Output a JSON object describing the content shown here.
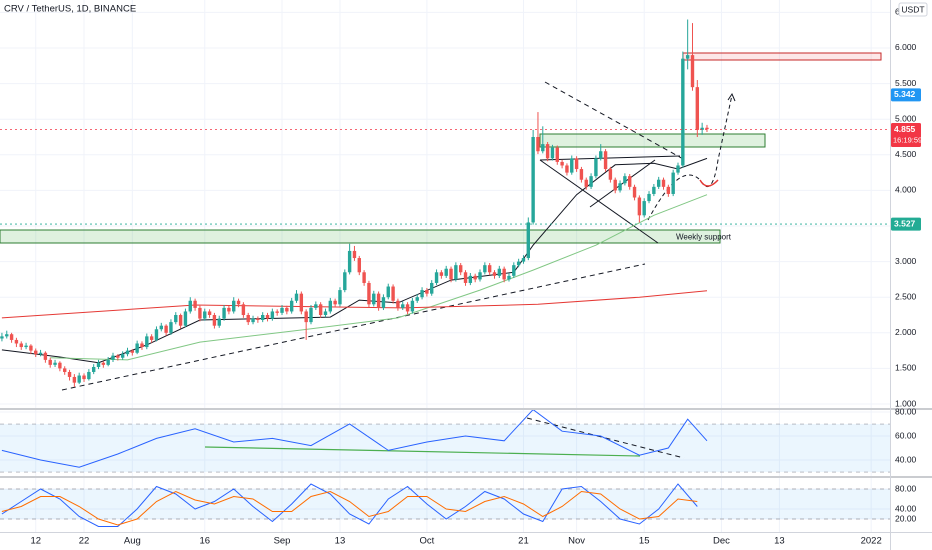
{
  "chart_data": [
    {
      "type": "candlestick",
      "title": "CRV / TetherUS, 1D, BINANCE",
      "currency": "USDT",
      "up_color": "#26a69a",
      "down_color": "#ef5350",
      "candles": [
        [
          1.92,
          2.0,
          1.88,
          1.95
        ],
        [
          1.95,
          2.03,
          1.92,
          1.98
        ],
        [
          1.98,
          2.0,
          1.86,
          1.9
        ],
        [
          1.9,
          1.93,
          1.8,
          1.85
        ],
        [
          1.85,
          1.88,
          1.76,
          1.8
        ],
        [
          1.8,
          1.86,
          1.77,
          1.82
        ],
        [
          1.82,
          1.84,
          1.7,
          1.75
        ],
        [
          1.75,
          1.78,
          1.66,
          1.7
        ],
        [
          1.7,
          1.76,
          1.67,
          1.72
        ],
        [
          1.72,
          1.74,
          1.58,
          1.62
        ],
        [
          1.62,
          1.65,
          1.51,
          1.55
        ],
        [
          1.55,
          1.62,
          1.52,
          1.58
        ],
        [
          1.58,
          1.6,
          1.46,
          1.5
        ],
        [
          1.5,
          1.53,
          1.41,
          1.45
        ],
        [
          1.45,
          1.48,
          1.33,
          1.38
        ],
        [
          1.38,
          1.42,
          1.24,
          1.3
        ],
        [
          1.3,
          1.44,
          1.28,
          1.4
        ],
        [
          1.4,
          1.43,
          1.31,
          1.35
        ],
        [
          1.35,
          1.49,
          1.33,
          1.45
        ],
        [
          1.45,
          1.56,
          1.42,
          1.52
        ],
        [
          1.52,
          1.62,
          1.49,
          1.58
        ],
        [
          1.58,
          1.6,
          1.51,
          1.55
        ],
        [
          1.55,
          1.66,
          1.53,
          1.62
        ],
        [
          1.62,
          1.72,
          1.59,
          1.68
        ],
        [
          1.68,
          1.7,
          1.61,
          1.65
        ],
        [
          1.65,
          1.74,
          1.62,
          1.7
        ],
        [
          1.7,
          1.79,
          1.67,
          1.75
        ],
        [
          1.75,
          1.77,
          1.68,
          1.72
        ],
        [
          1.72,
          1.89,
          1.7,
          1.85
        ],
        [
          1.85,
          1.88,
          1.76,
          1.8
        ],
        [
          1.8,
          1.99,
          1.77,
          1.95
        ],
        [
          1.95,
          1.98,
          1.86,
          1.9
        ],
        [
          1.9,
          2.09,
          1.88,
          2.05
        ],
        [
          2.05,
          2.14,
          2.02,
          2.1
        ],
        [
          2.1,
          2.12,
          1.96,
          2.0
        ],
        [
          2.0,
          2.19,
          1.97,
          2.15
        ],
        [
          2.15,
          2.29,
          2.12,
          2.25
        ],
        [
          2.25,
          2.27,
          2.06,
          2.1
        ],
        [
          2.1,
          2.34,
          2.08,
          2.3
        ],
        [
          2.3,
          2.5,
          2.27,
          2.45
        ],
        [
          2.45,
          2.48,
          2.31,
          2.35
        ],
        [
          2.35,
          2.38,
          2.16,
          2.2
        ],
        [
          2.2,
          2.34,
          2.17,
          2.3
        ],
        [
          2.3,
          2.33,
          2.21,
          2.25
        ],
        [
          2.25,
          2.28,
          2.06,
          2.1
        ],
        [
          2.1,
          2.24,
          2.07,
          2.2
        ],
        [
          2.2,
          2.39,
          2.17,
          2.35
        ],
        [
          2.35,
          2.38,
          2.26,
          2.3
        ],
        [
          2.3,
          2.5,
          2.27,
          2.45
        ],
        [
          2.45,
          2.48,
          2.36,
          2.4
        ],
        [
          2.4,
          2.43,
          2.21,
          2.25
        ],
        [
          2.25,
          2.28,
          2.11,
          2.15
        ],
        [
          2.15,
          2.24,
          2.12,
          2.2
        ],
        [
          2.2,
          2.23,
          2.14,
          2.18
        ],
        [
          2.18,
          2.29,
          2.15,
          2.25
        ],
        [
          2.25,
          2.28,
          2.16,
          2.2
        ],
        [
          2.2,
          2.34,
          2.17,
          2.3
        ],
        [
          2.3,
          2.33,
          2.24,
          2.28
        ],
        [
          2.28,
          2.39,
          2.25,
          2.35
        ],
        [
          2.35,
          2.38,
          2.26,
          2.3
        ],
        [
          2.3,
          2.49,
          2.27,
          2.45
        ],
        [
          2.45,
          2.6,
          2.42,
          2.55
        ],
        [
          2.55,
          2.58,
          2.26,
          2.3
        ],
        [
          2.3,
          2.33,
          1.9,
          2.15
        ],
        [
          2.15,
          2.39,
          2.12,
          2.35
        ],
        [
          2.35,
          2.44,
          2.32,
          2.4
        ],
        [
          2.4,
          2.43,
          2.21,
          2.25
        ],
        [
          2.25,
          2.34,
          2.22,
          2.3
        ],
        [
          2.3,
          2.49,
          2.27,
          2.45
        ],
        [
          2.45,
          2.48,
          2.36,
          2.4
        ],
        [
          2.4,
          2.64,
          2.37,
          2.6
        ],
        [
          2.6,
          2.89,
          2.57,
          2.85
        ],
        [
          2.85,
          3.25,
          2.82,
          3.15
        ],
        [
          3.15,
          3.22,
          3.01,
          3.05
        ],
        [
          3.05,
          3.08,
          2.81,
          2.85
        ],
        [
          2.85,
          2.88,
          2.66,
          2.7
        ],
        [
          2.7,
          2.73,
          2.36,
          2.4
        ],
        [
          2.4,
          2.59,
          2.37,
          2.55
        ],
        [
          2.55,
          2.58,
          2.31,
          2.35
        ],
        [
          2.35,
          2.54,
          2.32,
          2.5
        ],
        [
          2.5,
          2.69,
          2.47,
          2.65
        ],
        [
          2.65,
          2.68,
          2.41,
          2.45
        ],
        [
          2.45,
          2.48,
          2.31,
          2.35
        ],
        [
          2.35,
          2.44,
          2.32,
          2.4
        ],
        [
          2.4,
          2.43,
          2.26,
          2.3
        ],
        [
          2.3,
          2.49,
          2.27,
          2.45
        ],
        [
          2.45,
          2.54,
          2.42,
          2.5
        ],
        [
          2.5,
          2.64,
          2.47,
          2.6
        ],
        [
          2.6,
          2.63,
          2.51,
          2.55
        ],
        [
          2.55,
          2.74,
          2.52,
          2.7
        ],
        [
          2.7,
          2.89,
          2.67,
          2.85
        ],
        [
          2.85,
          2.88,
          2.76,
          2.8
        ],
        [
          2.8,
          2.94,
          2.77,
          2.9
        ],
        [
          2.9,
          2.93,
          2.71,
          2.75
        ],
        [
          2.75,
          2.99,
          2.72,
          2.95
        ],
        [
          2.95,
          2.98,
          2.81,
          2.85
        ],
        [
          2.85,
          2.88,
          2.66,
          2.7
        ],
        [
          2.7,
          2.84,
          2.67,
          2.8
        ],
        [
          2.8,
          2.83,
          2.71,
          2.75
        ],
        [
          2.75,
          2.89,
          2.72,
          2.85
        ],
        [
          2.85,
          2.99,
          2.82,
          2.95
        ],
        [
          2.95,
          2.98,
          2.81,
          2.85
        ],
        [
          2.85,
          2.88,
          2.76,
          2.8
        ],
        [
          2.8,
          2.94,
          2.77,
          2.9
        ],
        [
          2.9,
          2.93,
          2.71,
          2.75
        ],
        [
          2.75,
          2.84,
          2.72,
          2.8
        ],
        [
          2.8,
          2.99,
          2.77,
          2.95
        ],
        [
          2.95,
          3.04,
          2.92,
          3.0
        ],
        [
          3.0,
          3.09,
          2.97,
          3.05
        ],
        [
          3.05,
          3.62,
          3.02,
          3.55
        ],
        [
          3.55,
          4.85,
          3.52,
          4.75
        ],
        [
          4.75,
          5.1,
          4.51,
          4.55
        ],
        [
          4.55,
          4.9,
          4.52,
          4.65
        ],
        [
          4.65,
          4.68,
          4.41,
          4.45
        ],
        [
          4.45,
          4.64,
          4.42,
          4.6
        ],
        [
          4.6,
          4.63,
          4.36,
          4.4
        ],
        [
          4.4,
          4.43,
          4.31,
          4.35
        ],
        [
          4.35,
          4.38,
          4.21,
          4.25
        ],
        [
          4.25,
          4.49,
          4.22,
          4.45
        ],
        [
          4.45,
          4.48,
          4.26,
          4.3
        ],
        [
          4.3,
          4.33,
          4.11,
          4.15
        ],
        [
          4.15,
          4.18,
          4.01,
          4.05
        ],
        [
          4.05,
          4.24,
          4.02,
          4.2
        ],
        [
          4.2,
          4.49,
          4.17,
          4.45
        ],
        [
          4.45,
          4.65,
          4.42,
          4.55
        ],
        [
          4.55,
          4.58,
          4.26,
          4.3
        ],
        [
          4.3,
          4.33,
          4.11,
          4.15
        ],
        [
          4.15,
          4.18,
          3.96,
          4.0
        ],
        [
          4.0,
          4.14,
          3.97,
          4.1
        ],
        [
          4.1,
          4.24,
          4.07,
          4.2
        ],
        [
          4.2,
          4.23,
          4.01,
          4.05
        ],
        [
          4.05,
          4.08,
          3.86,
          3.9
        ],
        [
          3.9,
          3.93,
          3.55,
          3.65
        ],
        [
          3.65,
          3.89,
          3.62,
          3.85
        ],
        [
          3.85,
          3.99,
          3.82,
          3.95
        ],
        [
          3.95,
          4.09,
          3.92,
          4.05
        ],
        [
          4.05,
          4.19,
          4.02,
          4.15
        ],
        [
          4.15,
          4.18,
          4.01,
          4.05
        ],
        [
          4.05,
          4.08,
          3.91,
          3.95
        ],
        [
          3.95,
          4.29,
          3.92,
          4.25
        ],
        [
          4.25,
          4.39,
          4.22,
          4.35
        ],
        [
          4.35,
          5.95,
          4.32,
          5.85
        ],
        [
          5.85,
          6.4,
          5.7,
          5.9
        ],
        [
          5.9,
          6.35,
          5.4,
          5.45
        ],
        [
          5.45,
          5.55,
          4.75,
          4.85
        ],
        [
          4.85,
          4.95,
          4.78,
          4.88
        ],
        [
          4.88,
          4.92,
          4.82,
          4.86
        ]
      ],
      "lines": [
        {
          "color": "#131722",
          "x": [
            0,
            12,
            20,
            30,
            41,
            54,
            68,
            74,
            82,
            93,
            106,
            110,
            119,
            127,
            135,
            140,
            146
          ],
          "values": [
            1.76,
            1.66,
            1.58,
            1.83,
            2.18,
            2.2,
            2.22,
            2.46,
            2.42,
            2.74,
            2.85,
            3.23,
            3.94,
            4.36,
            4.38,
            4.3,
            4.45
          ]
        },
        {
          "color": "#81c784",
          "x": [
            10,
            26,
            41,
            62,
            82,
            99,
            110,
            123,
            135,
            146
          ],
          "values": [
            1.65,
            1.62,
            1.87,
            2.04,
            2.21,
            2.6,
            2.88,
            3.23,
            3.65,
            3.94
          ]
        },
        {
          "color": "#e53935",
          "x": [
            0,
            40,
            83,
            111,
            132,
            146
          ],
          "values": [
            2.21,
            2.39,
            2.35,
            2.4,
            2.5,
            2.59
          ]
        }
      ],
      "price_labels": [
        {
          "value": 5.342,
          "color": "#2196f3",
          "line": false
        },
        {
          "value": 4.855,
          "color": "#f23645",
          "countdown": "16:19:59",
          "line": true
        },
        {
          "value": 3.527,
          "color": "#22ab94",
          "line": true
        }
      ],
      "annotations": [
        "Weekly support"
      ],
      "xlim": [
        -0.4,
        183.9
      ],
      "xticks": [
        {
          "value": 7,
          "label": "12"
        },
        {
          "value": 17,
          "label": "22"
        },
        {
          "value": 27,
          "label": "Aug"
        },
        {
          "value": 42,
          "label": "16"
        },
        {
          "value": 58,
          "label": "Sep"
        },
        {
          "value": 70,
          "label": "13"
        },
        {
          "value": 88,
          "label": "Oct"
        },
        {
          "value": 108,
          "label": "21"
        },
        {
          "value": 119,
          "label": "Nov"
        },
        {
          "value": 133,
          "label": "15"
        },
        {
          "value": 149,
          "label": "Dec"
        },
        {
          "value": 161,
          "label": "13"
        },
        {
          "value": 180,
          "label": "2022"
        }
      ],
      "ylim": [
        0.944,
        6.674
      ],
      "yticks": [
        {
          "value": 1,
          "label": "1.000"
        },
        {
          "value": 1.5,
          "label": "1.500"
        },
        {
          "value": 2,
          "label": "2.000"
        },
        {
          "value": 2.5,
          "label": "2.500"
        },
        {
          "value": 3,
          "label": "3.000"
        },
        {
          "value": 3.5,
          "label": "3.500"
        },
        {
          "value": 4,
          "label": "4.000"
        },
        {
          "value": 4.5,
          "label": "4.500"
        },
        {
          "value": 5,
          "label": "5.000"
        },
        {
          "value": 5.5,
          "label": "5.500"
        },
        {
          "value": 6,
          "label": "6.000"
        },
        {
          "value": 6.5,
          "label": "6.500"
        }
      ],
      "grid": true
    },
    {
      "type": "line",
      "x": [
        0,
        8,
        16,
        24,
        32,
        40,
        48,
        56,
        64,
        72,
        80,
        88,
        96,
        104,
        110,
        116,
        124,
        132,
        138,
        142,
        146
      ],
      "series": [
        {
          "color": "#2962ff",
          "values": [
            48,
            40,
            34,
            45,
            58,
            66,
            55,
            58,
            52,
            70,
            48,
            55,
            60,
            56,
            82,
            64,
            60,
            44,
            50,
            74,
            56
          ]
        }
      ],
      "band": [
        30,
        70
      ],
      "ylim": [
        26.7,
        81.7
      ],
      "yticks": [
        {
          "value": 40,
          "label": "40.00"
        },
        {
          "value": 60,
          "label": "60.00"
        },
        {
          "value": 80,
          "label": "80.00"
        }
      ],
      "grid": true
    },
    {
      "type": "line",
      "x": [
        0,
        4,
        8,
        12,
        16,
        20,
        24,
        28,
        32,
        36,
        40,
        44,
        48,
        52,
        56,
        60,
        64,
        68,
        72,
        76,
        80,
        84,
        88,
        92,
        96,
        100,
        104,
        108,
        112,
        116,
        120,
        124,
        128,
        132,
        136,
        140,
        144
      ],
      "series": [
        {
          "color": "#2962ff",
          "values": [
            30,
            55,
            80,
            60,
            25,
            5,
            5,
            40,
            85,
            70,
            40,
            55,
            80,
            45,
            15,
            50,
            90,
            70,
            30,
            10,
            60,
            85,
            50,
            20,
            45,
            75,
            60,
            30,
            15,
            80,
            85,
            55,
            20,
            10,
            40,
            90,
            45
          ]
        },
        {
          "color": "#ff6d00",
          "values": [
            35,
            45,
            65,
            65,
            45,
            20,
            8,
            20,
            55,
            75,
            58,
            50,
            65,
            60,
            35,
            35,
            65,
            75,
            55,
            25,
            35,
            65,
            65,
            40,
            35,
            55,
            65,
            50,
            25,
            45,
            75,
            70,
            40,
            20,
            25,
            60,
            55
          ]
        }
      ],
      "band": [
        20,
        80
      ],
      "ylim": [
        -6,
        102
      ],
      "yticks": [
        {
          "value": 20,
          "label": "20.00"
        },
        {
          "value": 40,
          "label": "40.00"
        },
        {
          "value": 80,
          "label": "80.00"
        }
      ],
      "grid": true
    }
  ]
}
